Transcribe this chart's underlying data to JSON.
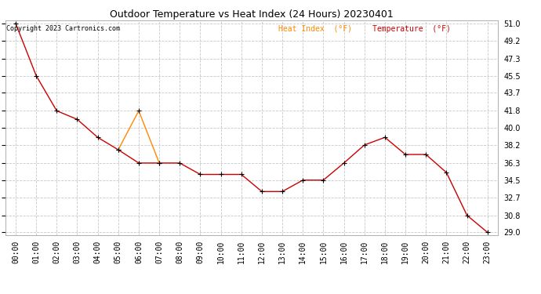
{
  "title": "Outdoor Temperature vs Heat Index (24 Hours) 20230401",
  "copyright_text": "Copyright 2023 Cartronics.com",
  "legend_heat_index": "Heat Index  (°F)",
  "legend_temperature": "Temperature  (°F)",
  "hours": [
    "00:00",
    "01:00",
    "02:00",
    "03:00",
    "04:00",
    "05:00",
    "06:00",
    "07:00",
    "08:00",
    "09:00",
    "10:00",
    "11:00",
    "12:00",
    "13:00",
    "14:00",
    "15:00",
    "16:00",
    "17:00",
    "18:00",
    "19:00",
    "20:00",
    "21:00",
    "22:00",
    "23:00"
  ],
  "temperature": [
    51.0,
    45.5,
    41.8,
    40.9,
    39.0,
    37.7,
    36.3,
    36.3,
    36.3,
    35.1,
    35.1,
    35.1,
    33.3,
    33.3,
    34.5,
    34.5,
    36.3,
    38.2,
    39.0,
    37.2,
    37.2,
    35.3,
    30.8,
    29.0
  ],
  "heat_index_points": [
    [
      5,
      37.7
    ],
    [
      6,
      41.8
    ],
    [
      7,
      36.3
    ]
  ],
  "ylim_min": 29.0,
  "ylim_max": 51.0,
  "yticks": [
    29.0,
    30.8,
    32.7,
    34.5,
    36.3,
    38.2,
    40.0,
    41.8,
    43.7,
    45.5,
    47.3,
    49.2,
    51.0
  ],
  "temp_color": "#cc0000",
  "heat_index_color": "#ff8800",
  "title_color": "#000000",
  "copyright_color": "#000000",
  "legend_heat_index_color": "#ff8800",
  "legend_temp_color": "#cc0000",
  "bg_color": "#ffffff",
  "grid_color": "#c8c8c8",
  "marker_color": "#000000",
  "marker_size": 4,
  "linewidth": 1.0,
  "title_fontsize": 9,
  "tick_fontsize": 7,
  "copyright_fontsize": 6,
  "legend_fontsize": 7
}
